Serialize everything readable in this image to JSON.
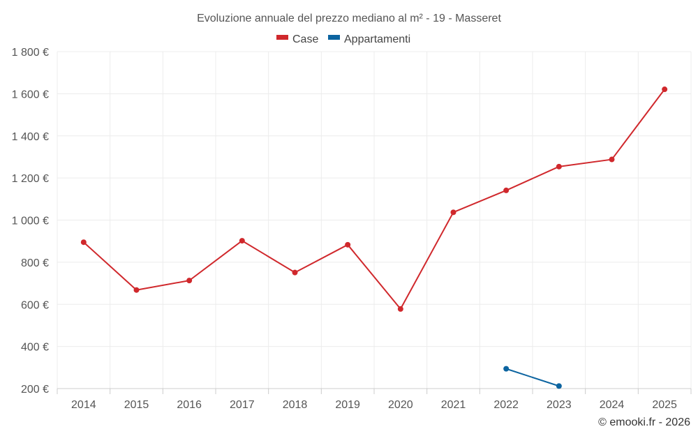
{
  "chart_data": {
    "type": "line",
    "title": "Evoluzione annuale del prezzo mediano al m² - 19 - Masseret",
    "categories": [
      "2014",
      "2015",
      "2016",
      "2017",
      "2018",
      "2019",
      "2020",
      "2021",
      "2022",
      "2023",
      "2024",
      "2025"
    ],
    "series": [
      {
        "name": "Case",
        "color": "#d0282c",
        "values": [
          895,
          668,
          713,
          902,
          751,
          883,
          578,
          1037,
          1141,
          1254,
          1288,
          1621
        ]
      },
      {
        "name": "Appartamenti",
        "color": "#0c64a0",
        "values": [
          null,
          null,
          null,
          null,
          null,
          null,
          null,
          null,
          294,
          212,
          null,
          null
        ]
      }
    ],
    "ylim": [
      200,
      1800
    ],
    "yticks": [
      200,
      400,
      600,
      800,
      1000,
      1200,
      1400,
      1600,
      1800
    ],
    "ytick_labels": [
      "200 €",
      "400 €",
      "600 €",
      "800 €",
      "1 000 €",
      "1 200 €",
      "1 400 €",
      "1 600 €",
      "1 800 €"
    ],
    "grid": true,
    "legend_position": "top-center"
  },
  "credit": "© emooki.fr - 2026"
}
